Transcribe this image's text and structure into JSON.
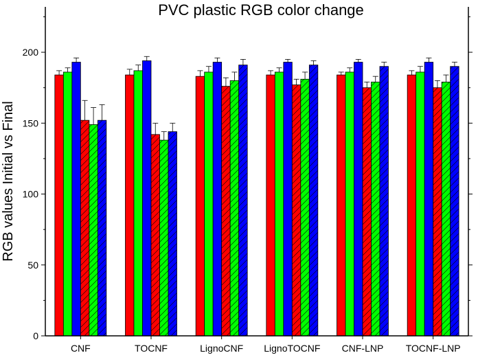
{
  "chart_data": {
    "type": "bar",
    "title": "PVC plastic RGB color change",
    "xlabel": "",
    "ylabel": "RGB values Initial vs Final",
    "ylim": [
      0,
      232
    ],
    "yticks": [
      0,
      50,
      100,
      150,
      200
    ],
    "grid": false,
    "legend": "none",
    "categories": [
      "CNF",
      "TOCNF",
      "LignoCNF",
      "LignoTOCNF",
      "CNF-LNP",
      "TOCNF-LNP"
    ],
    "series": [
      {
        "color": "#ff0000",
        "pattern": "solid",
        "values": [
          184,
          184,
          183,
          184,
          184,
          184
        ],
        "errors": [
          3,
          4,
          4,
          3,
          2,
          3
        ]
      },
      {
        "color": "#00ff00",
        "pattern": "solid",
        "values": [
          186,
          187,
          186,
          186,
          186,
          186
        ],
        "errors": [
          3,
          4,
          4,
          3,
          3,
          4
        ]
      },
      {
        "color": "#0000ff",
        "pattern": "solid",
        "values": [
          193,
          194,
          193,
          193,
          193,
          193
        ],
        "errors": [
          3,
          3,
          3,
          2,
          2,
          3
        ]
      },
      {
        "color": "#ff0000",
        "pattern": "hatched",
        "values": [
          152,
          142,
          176,
          177,
          175,
          175
        ],
        "errors": [
          14,
          8,
          6,
          4,
          4,
          5
        ]
      },
      {
        "color": "#00ff00",
        "pattern": "hatched",
        "values": [
          149,
          138,
          180,
          181,
          179,
          179
        ],
        "errors": [
          12,
          6,
          6,
          5,
          4,
          5
        ]
      },
      {
        "color": "#0000ff",
        "pattern": "hatched",
        "values": [
          152,
          144,
          191,
          191,
          190,
          190
        ],
        "errors": [
          11,
          6,
          4,
          3,
          3,
          3
        ]
      }
    ]
  }
}
